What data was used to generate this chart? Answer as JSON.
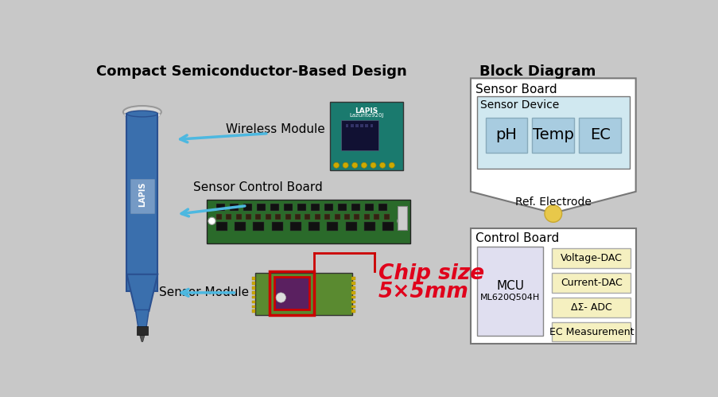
{
  "title_left": "Compact Semiconductor-Based Design",
  "title_right": "Block Diagram",
  "bg_color": "#c8c8c8",
  "label_wireless": "Wireless Module",
  "label_sensor_ctrl": "Sensor Control Board",
  "label_sensor_mod": "Sensor Module",
  "chip_size_line1": "Chip size",
  "chip_size_line2": "5×5mm",
  "sensor_board_title": "Sensor Board",
  "sensor_device_title": "Sensor Device",
  "sensor_boxes": [
    "pH",
    "Temp",
    "EC"
  ],
  "ref_electrode_label": "Ref. Electrode",
  "control_board_title": "Control Board",
  "mcu_label": "MCU",
  "mcu_sub": "ML620Q504H",
  "control_boxes": [
    "Voltage-DAC",
    "Current-DAC",
    "ΔΣ- ADC",
    "EC Measurement"
  ],
  "arrow_color": "#4db8e0",
  "chip_text_color": "#e0001b",
  "sensor_box_fill": "#a8cce0",
  "sensor_outer_fill": "#d0e8f0",
  "control_box_fill": "#f5f0c0",
  "mcu_box_fill": "#e0dff0"
}
